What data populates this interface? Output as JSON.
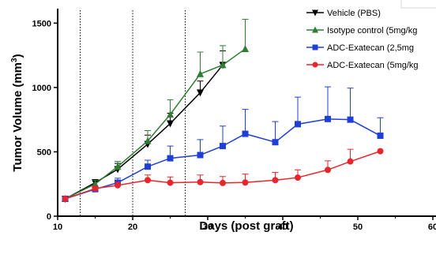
{
  "chart_data": {
    "type": "line",
    "title": "",
    "xlabel": "Days (post graft)",
    "ylabel": "Tumor Volume (mm",
    "ylabel_superscript": "3",
    "ylabel_suffix": ")",
    "xlim": [
      10,
      60
    ],
    "ylim": [
      0,
      1600
    ],
    "xticks": [
      10,
      20,
      30,
      40,
      50,
      60
    ],
    "yticks": [
      0,
      500,
      1000,
      1500
    ],
    "xtick_labels": [
      "10",
      "20",
      "30",
      "40",
      "50",
      "60"
    ],
    "ytick_labels": [
      "0",
      "500",
      "1000",
      "1500"
    ],
    "grid": false,
    "legend_position": "top-right",
    "reference_lines_x": [
      13,
      20,
      27
    ],
    "series": [
      {
        "name": "Vehicle (PBS)",
        "color": "#000000",
        "marker": "triangle-down",
        "x": [
          11,
          15,
          18,
          22,
          25,
          29,
          32
        ],
        "y": [
          135,
          260,
          365,
          560,
          720,
          960,
          1175
        ],
        "err": [
          0,
          25,
          45,
          70,
          80,
          90,
          110
        ]
      },
      {
        "name": "Isotype control (5mg/kg",
        "color": "#2e7d32",
        "marker": "triangle-up",
        "x": [
          11,
          15,
          18,
          22,
          25,
          29,
          32,
          35
        ],
        "y": [
          135,
          250,
          385,
          585,
          790,
          1105,
          1175,
          1300
        ],
        "err": [
          0,
          30,
          40,
          80,
          115,
          170,
          150,
          230
        ]
      },
      {
        "name": "ADC-Exatecan  (2,5mg",
        "color": "#1f3fd6",
        "marker": "square",
        "x": [
          11,
          15,
          18,
          22,
          25,
          29,
          32,
          35,
          39,
          42,
          46,
          49,
          53
        ],
        "y": [
          135,
          210,
          260,
          385,
          450,
          475,
          545,
          640,
          575,
          715,
          755,
          750,
          625
        ],
        "err": [
          0,
          15,
          35,
          50,
          95,
          120,
          155,
          190,
          160,
          210,
          250,
          245,
          140
        ]
      },
      {
        "name": "ADC-Exatecan (5mg/kg",
        "color": "#e8252a",
        "marker": "circle",
        "x": [
          11,
          15,
          18,
          22,
          25,
          29,
          32,
          35,
          39,
          42,
          46,
          49,
          53
        ],
        "y": [
          135,
          215,
          240,
          280,
          260,
          265,
          258,
          262,
          280,
          300,
          360,
          425,
          505
        ],
        "err": [
          0,
          15,
          25,
          40,
          45,
          55,
          50,
          65,
          60,
          60,
          70,
          95,
          0
        ]
      }
    ]
  }
}
